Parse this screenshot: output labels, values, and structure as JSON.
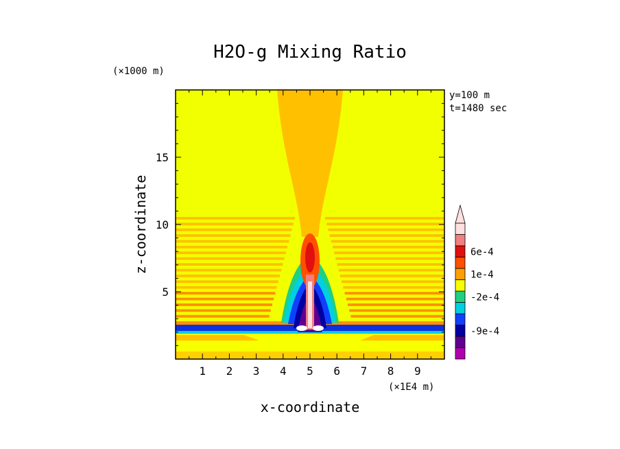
{
  "chart_data": {
    "type": "heatmap",
    "title": "H2O-g Mixing Ratio",
    "xlabel": "x-coordinate",
    "ylabel": "z-coordinate",
    "x_unit": "(×1E4 m)",
    "y_unit": "(×1000 m)",
    "xlim": [
      0,
      10
    ],
    "ylim": [
      0,
      20
    ],
    "x_ticks": [
      "1",
      "2",
      "3",
      "4",
      "5",
      "6",
      "7",
      "8",
      "9"
    ],
    "y_ticks": [
      "5",
      "10",
      "15"
    ],
    "annotations": [
      "y=100 m",
      "t=1480 sec"
    ],
    "colorbar": {
      "labels": [
        "6e-4",
        "1e-4",
        "-2e-4",
        "-9e-4"
      ],
      "colors": [
        "#b000b0",
        "#600090",
        "#0000a0",
        "#1040ff",
        "#00d0e0",
        "#20d080",
        "#f8ff00",
        "#ffa000",
        "#ff5000",
        "#e01010",
        "#f08080",
        "#ffe0e0"
      ]
    }
  }
}
